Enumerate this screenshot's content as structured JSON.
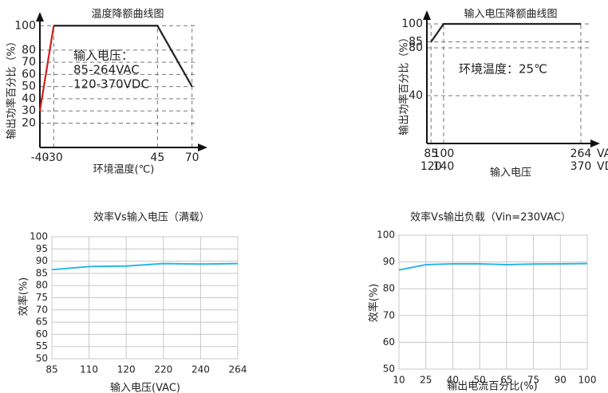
{
  "chart_data": [
    {
      "type": "line",
      "title": "温度降额曲线图",
      "y_label": "输出功率百分比（%）",
      "x_label": "环境温度(℃)",
      "xlim": [
        -40,
        80
      ],
      "xticks": [
        -40,
        -30,
        45,
        70
      ],
      "ylim": [
        0,
        110
      ],
      "yticks": [
        20,
        30,
        40,
        50,
        60,
        70,
        80,
        100
      ],
      "grid": "dashed",
      "axis_arrows": true,
      "series": [
        {
          "color": "#d0201a",
          "x": [
            -40,
            -30
          ],
          "values": [
            30,
            100
          ]
        },
        {
          "color": "#222222",
          "x": [
            -30,
            45,
            70
          ],
          "values": [
            100,
            100,
            50
          ]
        }
      ],
      "annotations": [
        "输入电压：",
        "85-264VAC",
        "120-370VDC"
      ]
    },
    {
      "type": "line",
      "title": "输入电压降额曲线图",
      "y_label": "输出功率百分比（%）",
      "x_label": "输入电压",
      "xlim": [
        80,
        285
      ],
      "xticks": [
        85,
        100,
        264
      ],
      "xticks_dc": [
        "120",
        "140",
        "370"
      ],
      "x_units": [
        "VAC",
        "VDC"
      ],
      "ylim": [
        0,
        110
      ],
      "yticks": [
        40,
        80,
        85,
        100
      ],
      "grid": "dashed",
      "axis_arrows": true,
      "series": [
        {
          "color": "#222222",
          "x": [
            85,
            100,
            264
          ],
          "values": [
            85,
            100,
            100
          ]
        }
      ],
      "annotations": [
        "环境温度：25℃"
      ]
    },
    {
      "type": "line",
      "title": "效率Vs输入电压（满载）",
      "y_label": "效率(%)",
      "x_label": "输入电压(VAC)",
      "categories": [
        "85",
        "110",
        "120",
        "220",
        "240",
        "264"
      ],
      "ylim": [
        50,
        100
      ],
      "yticks": [
        50,
        55,
        60,
        65,
        70,
        75,
        80,
        85,
        90,
        95,
        100
      ],
      "grid": "solid",
      "series": [
        {
          "color": "#29b6e8",
          "values": [
            86.5,
            87.8,
            88,
            89,
            88.8,
            89
          ]
        }
      ]
    },
    {
      "type": "line",
      "title": "效率Vs输出负载（Vin=230VAC）",
      "y_label": "效率(%)",
      "x_label": "输出电流百分比(%)",
      "categories": [
        "10",
        "25",
        "40",
        "50",
        "65",
        "75",
        "90",
        "100"
      ],
      "ylim": [
        50,
        100
      ],
      "yticks": [
        50,
        60,
        70,
        80,
        90,
        100
      ],
      "grid": "solid",
      "series": [
        {
          "color": "#29b6e8",
          "values": [
            87,
            89,
            89.3,
            89.3,
            89,
            89.2,
            89.3,
            89.4
          ]
        }
      ]
    }
  ]
}
